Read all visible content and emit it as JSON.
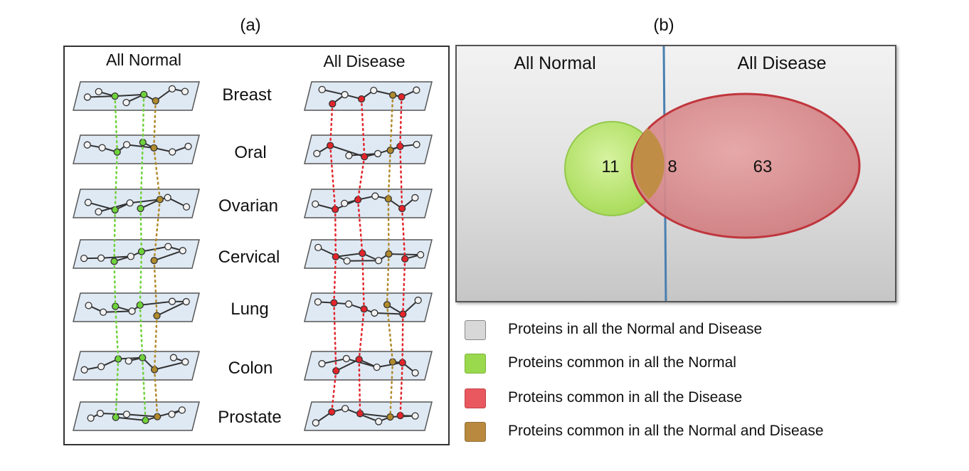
{
  "panel_a": {
    "label": "(a)",
    "normal_title": "All Normal",
    "disease_title": "All Disease",
    "tissues": [
      "Breast",
      "Oral",
      "Ovarian",
      "Cervical",
      "Lung",
      "Colon",
      "Prostate"
    ]
  },
  "panel_b": {
    "label": "(b)",
    "normal_title": "All Normal",
    "disease_title": "All Disease",
    "venn": {
      "normal_only": "11",
      "shared": "8",
      "disease_only": "63"
    }
  },
  "legend": [
    {
      "text": "Proteins in all the Normal and Disease",
      "color": "#d8d8d8"
    },
    {
      "text": "Proteins common in all the Normal",
      "color": "#9ad94e"
    },
    {
      "text": "Proteins common in all the Disease",
      "color": "#e8585e"
    },
    {
      "text": "Proteins common in all the Normal and Disease",
      "color": "#b8893e"
    }
  ],
  "colors": {
    "normal_node": "#6fd23b",
    "disease_node": "#e3252b",
    "shared_node": "#b08a2c",
    "normal_circle": "#b4e06a",
    "disease_circle": "#d9777b",
    "divider": "#4a7fb0"
  }
}
